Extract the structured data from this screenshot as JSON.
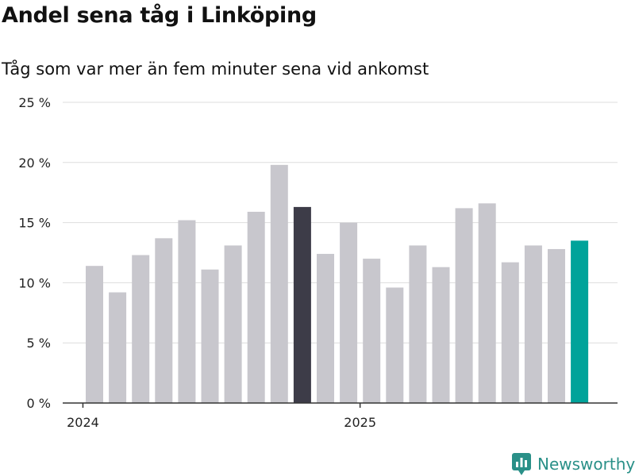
{
  "header": {
    "title": "Andel sena tåg i Linköping",
    "subtitle": "Tåg som var mer än fem minuter sena vid ankomst"
  },
  "brand": {
    "name": "Newsworthy"
  },
  "colors": {
    "bar": "#c8c7cd",
    "highlight_dark": "#3d3c48",
    "highlight_accent": "#00a39a",
    "grid": "#dddddd"
  },
  "chart_data": {
    "type": "bar",
    "title": "Andel sena tåg i Linköping",
    "subtitle": "Tåg som var mer än fem minuter sena vid ankomst",
    "categories": [
      "2024-01",
      "2024-02",
      "2024-03",
      "2024-04",
      "2024-05",
      "2024-06",
      "2024-07",
      "2024-08",
      "2024-09",
      "2024-10",
      "2024-11",
      "2024-12",
      "2025-01",
      "2025-02",
      "2025-03",
      "2025-04",
      "2025-05",
      "2025-06",
      "2025-07",
      "2025-08",
      "2025-09",
      "2025-10"
    ],
    "values": [
      11.4,
      9.2,
      12.3,
      13.7,
      15.2,
      11.1,
      13.1,
      15.9,
      19.8,
      16.3,
      12.4,
      15.0,
      12.0,
      9.6,
      13.1,
      11.3,
      16.2,
      16.6,
      11.7,
      13.1,
      12.8,
      13.5
    ],
    "highlight": {
      "dark_index": 9,
      "accent_index": 21
    },
    "ylim": [
      0,
      25
    ],
    "yticks": [
      0,
      5,
      10,
      15,
      20,
      25
    ],
    "ytick_labels": [
      "0 %",
      "5 %",
      "10 %",
      "15 %",
      "20 %",
      "25 %"
    ],
    "xtick_labels": [
      {
        "label": "2024",
        "after_index": -1
      },
      {
        "label": "2025",
        "after_index": 11
      }
    ],
    "xlabel": "",
    "ylabel": "",
    "grid": true
  }
}
